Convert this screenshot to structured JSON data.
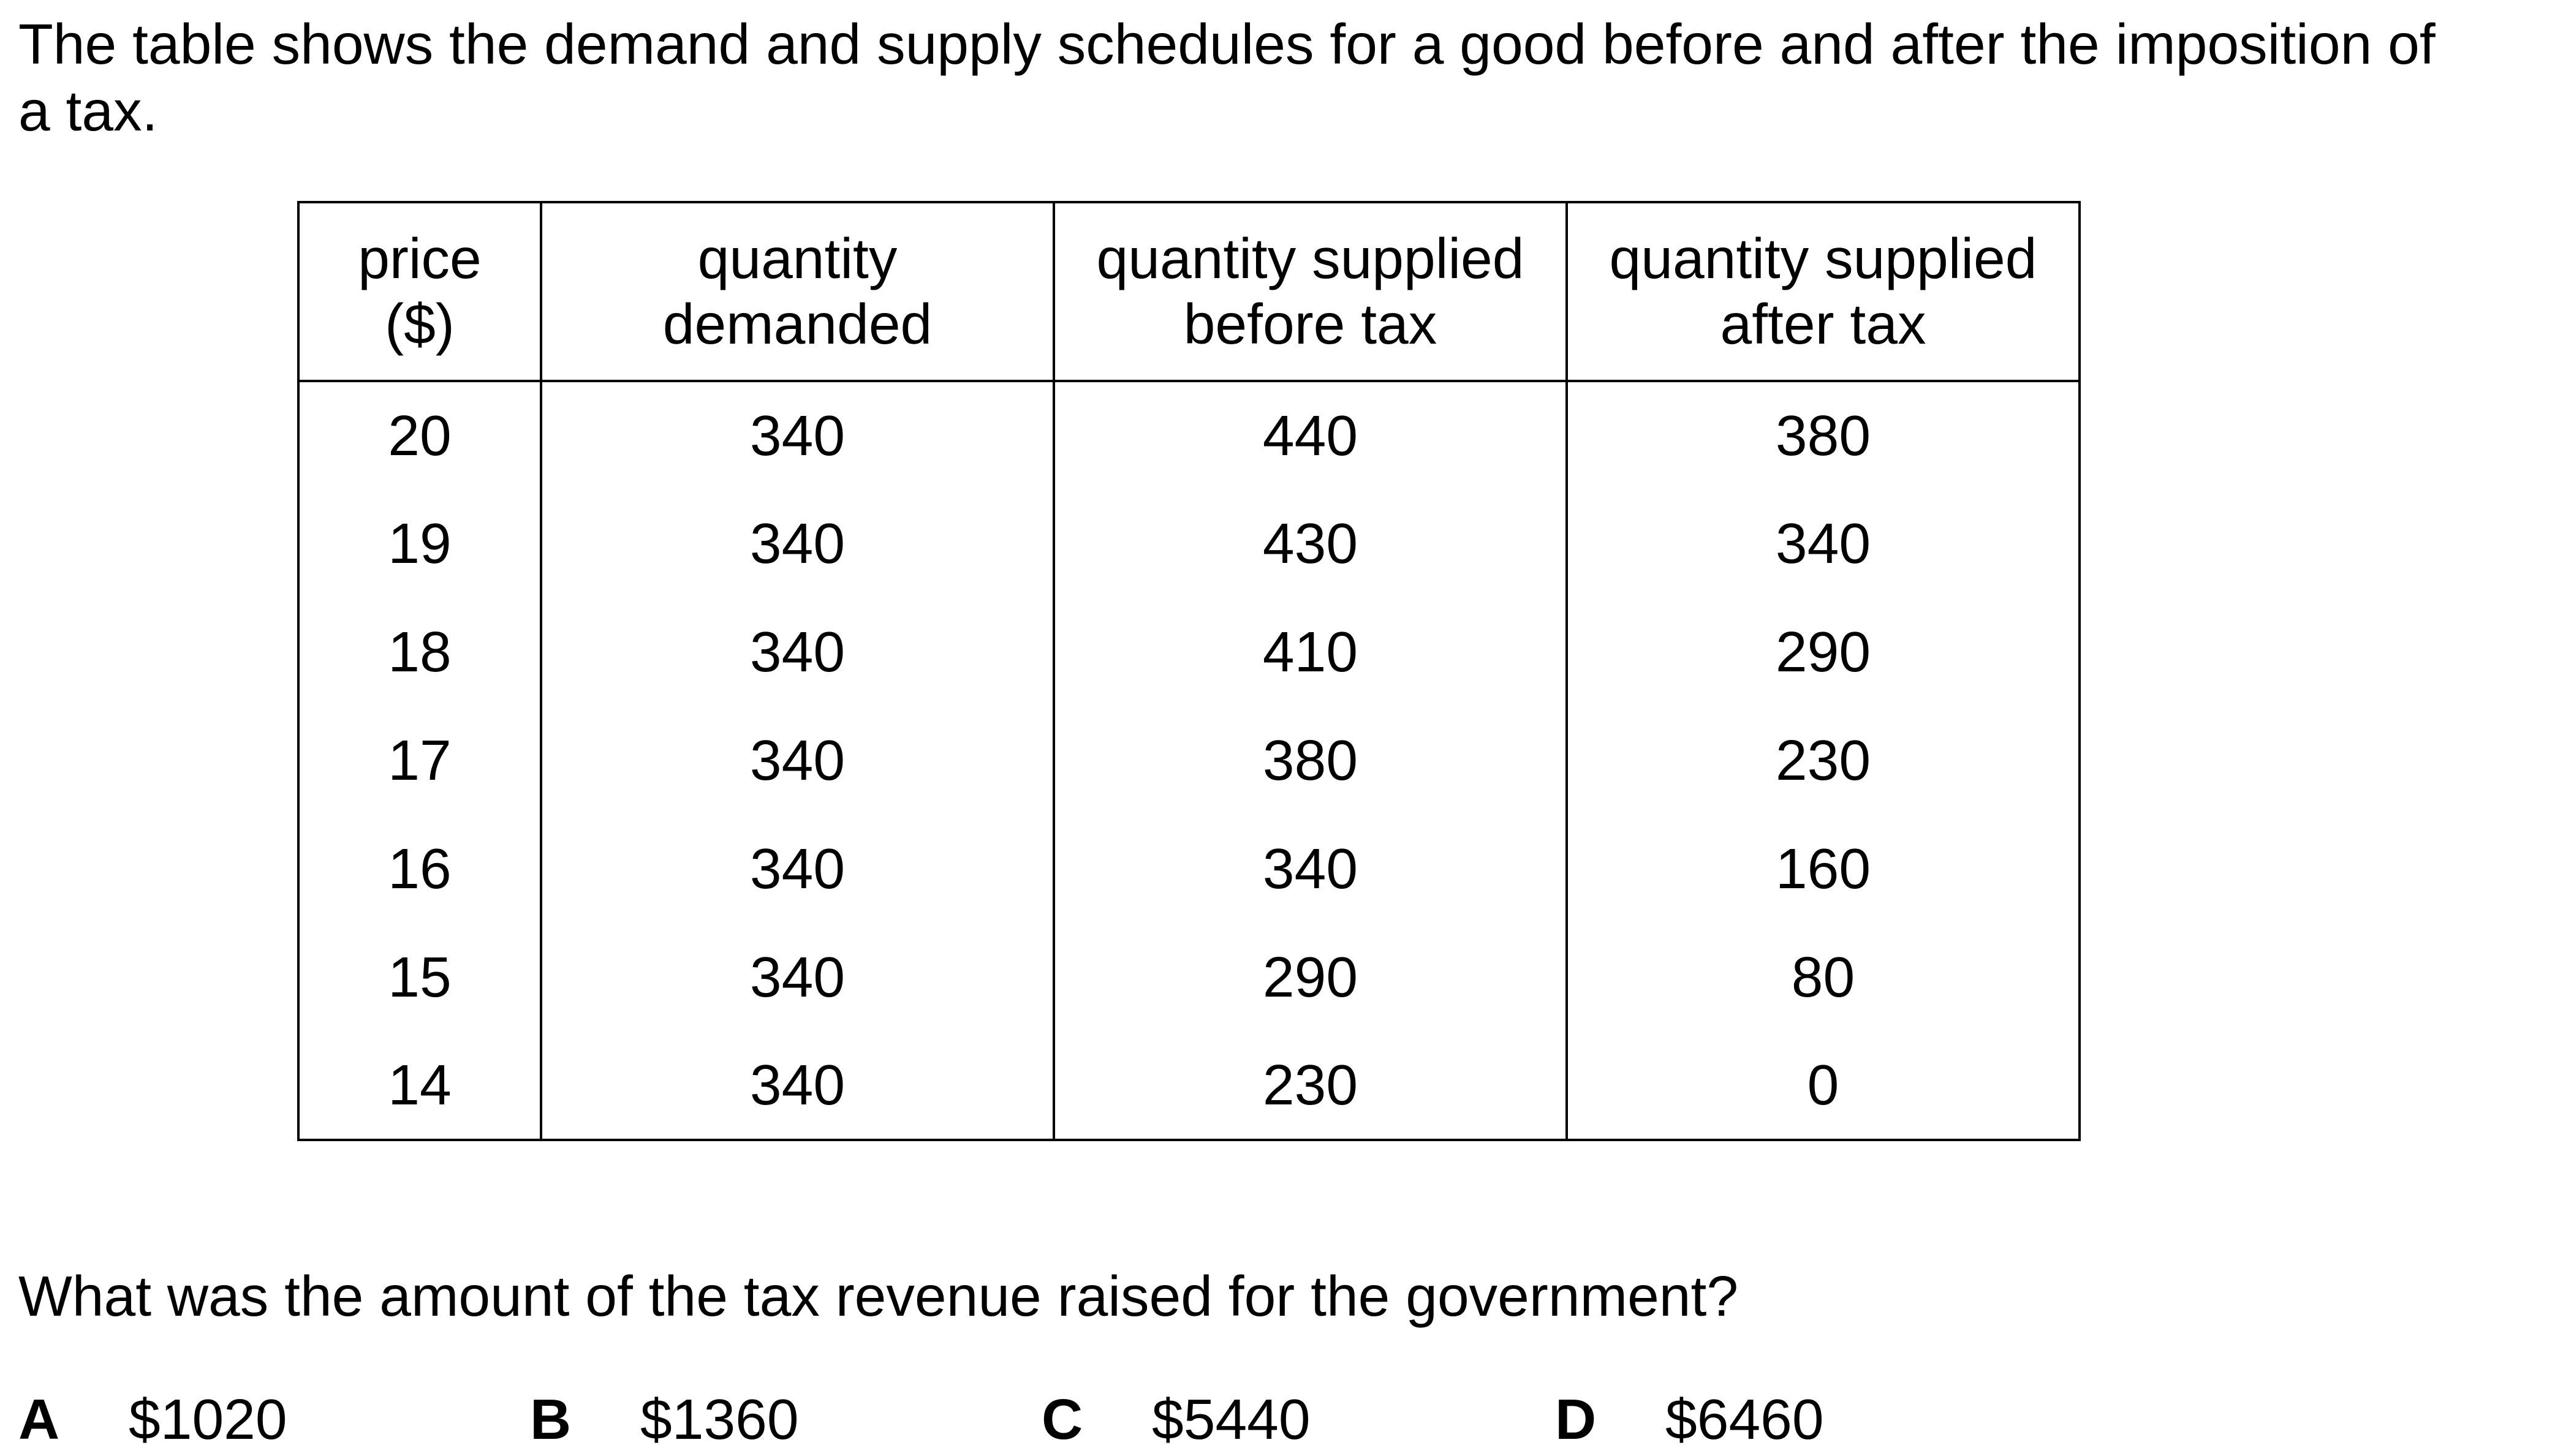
{
  "intro": {
    "line1": "The table shows the demand and supply schedules for a good before and after the imposition of",
    "line2": "a tax."
  },
  "table": {
    "headers": [
      [
        "price",
        "($)"
      ],
      [
        "quantity",
        "demanded"
      ],
      [
        "quantity supplied",
        "before tax"
      ],
      [
        "quantity supplied",
        "after tax"
      ]
    ],
    "rows": [
      [
        "20",
        "340",
        "440",
        "380"
      ],
      [
        "19",
        "340",
        "430",
        "340"
      ],
      [
        "18",
        "340",
        "410",
        "290"
      ],
      [
        "17",
        "340",
        "380",
        "230"
      ],
      [
        "16",
        "340",
        "340",
        "160"
      ],
      [
        "15",
        "340",
        "290",
        "80"
      ],
      [
        "14",
        "340",
        "230",
        "0"
      ]
    ]
  },
  "question": "What was the amount of the tax revenue raised for the government?",
  "options": [
    {
      "letter": "A",
      "value": "$1020"
    },
    {
      "letter": "B",
      "value": "$1360"
    },
    {
      "letter": "C",
      "value": "$5440"
    },
    {
      "letter": "D",
      "value": "$6460"
    }
  ]
}
